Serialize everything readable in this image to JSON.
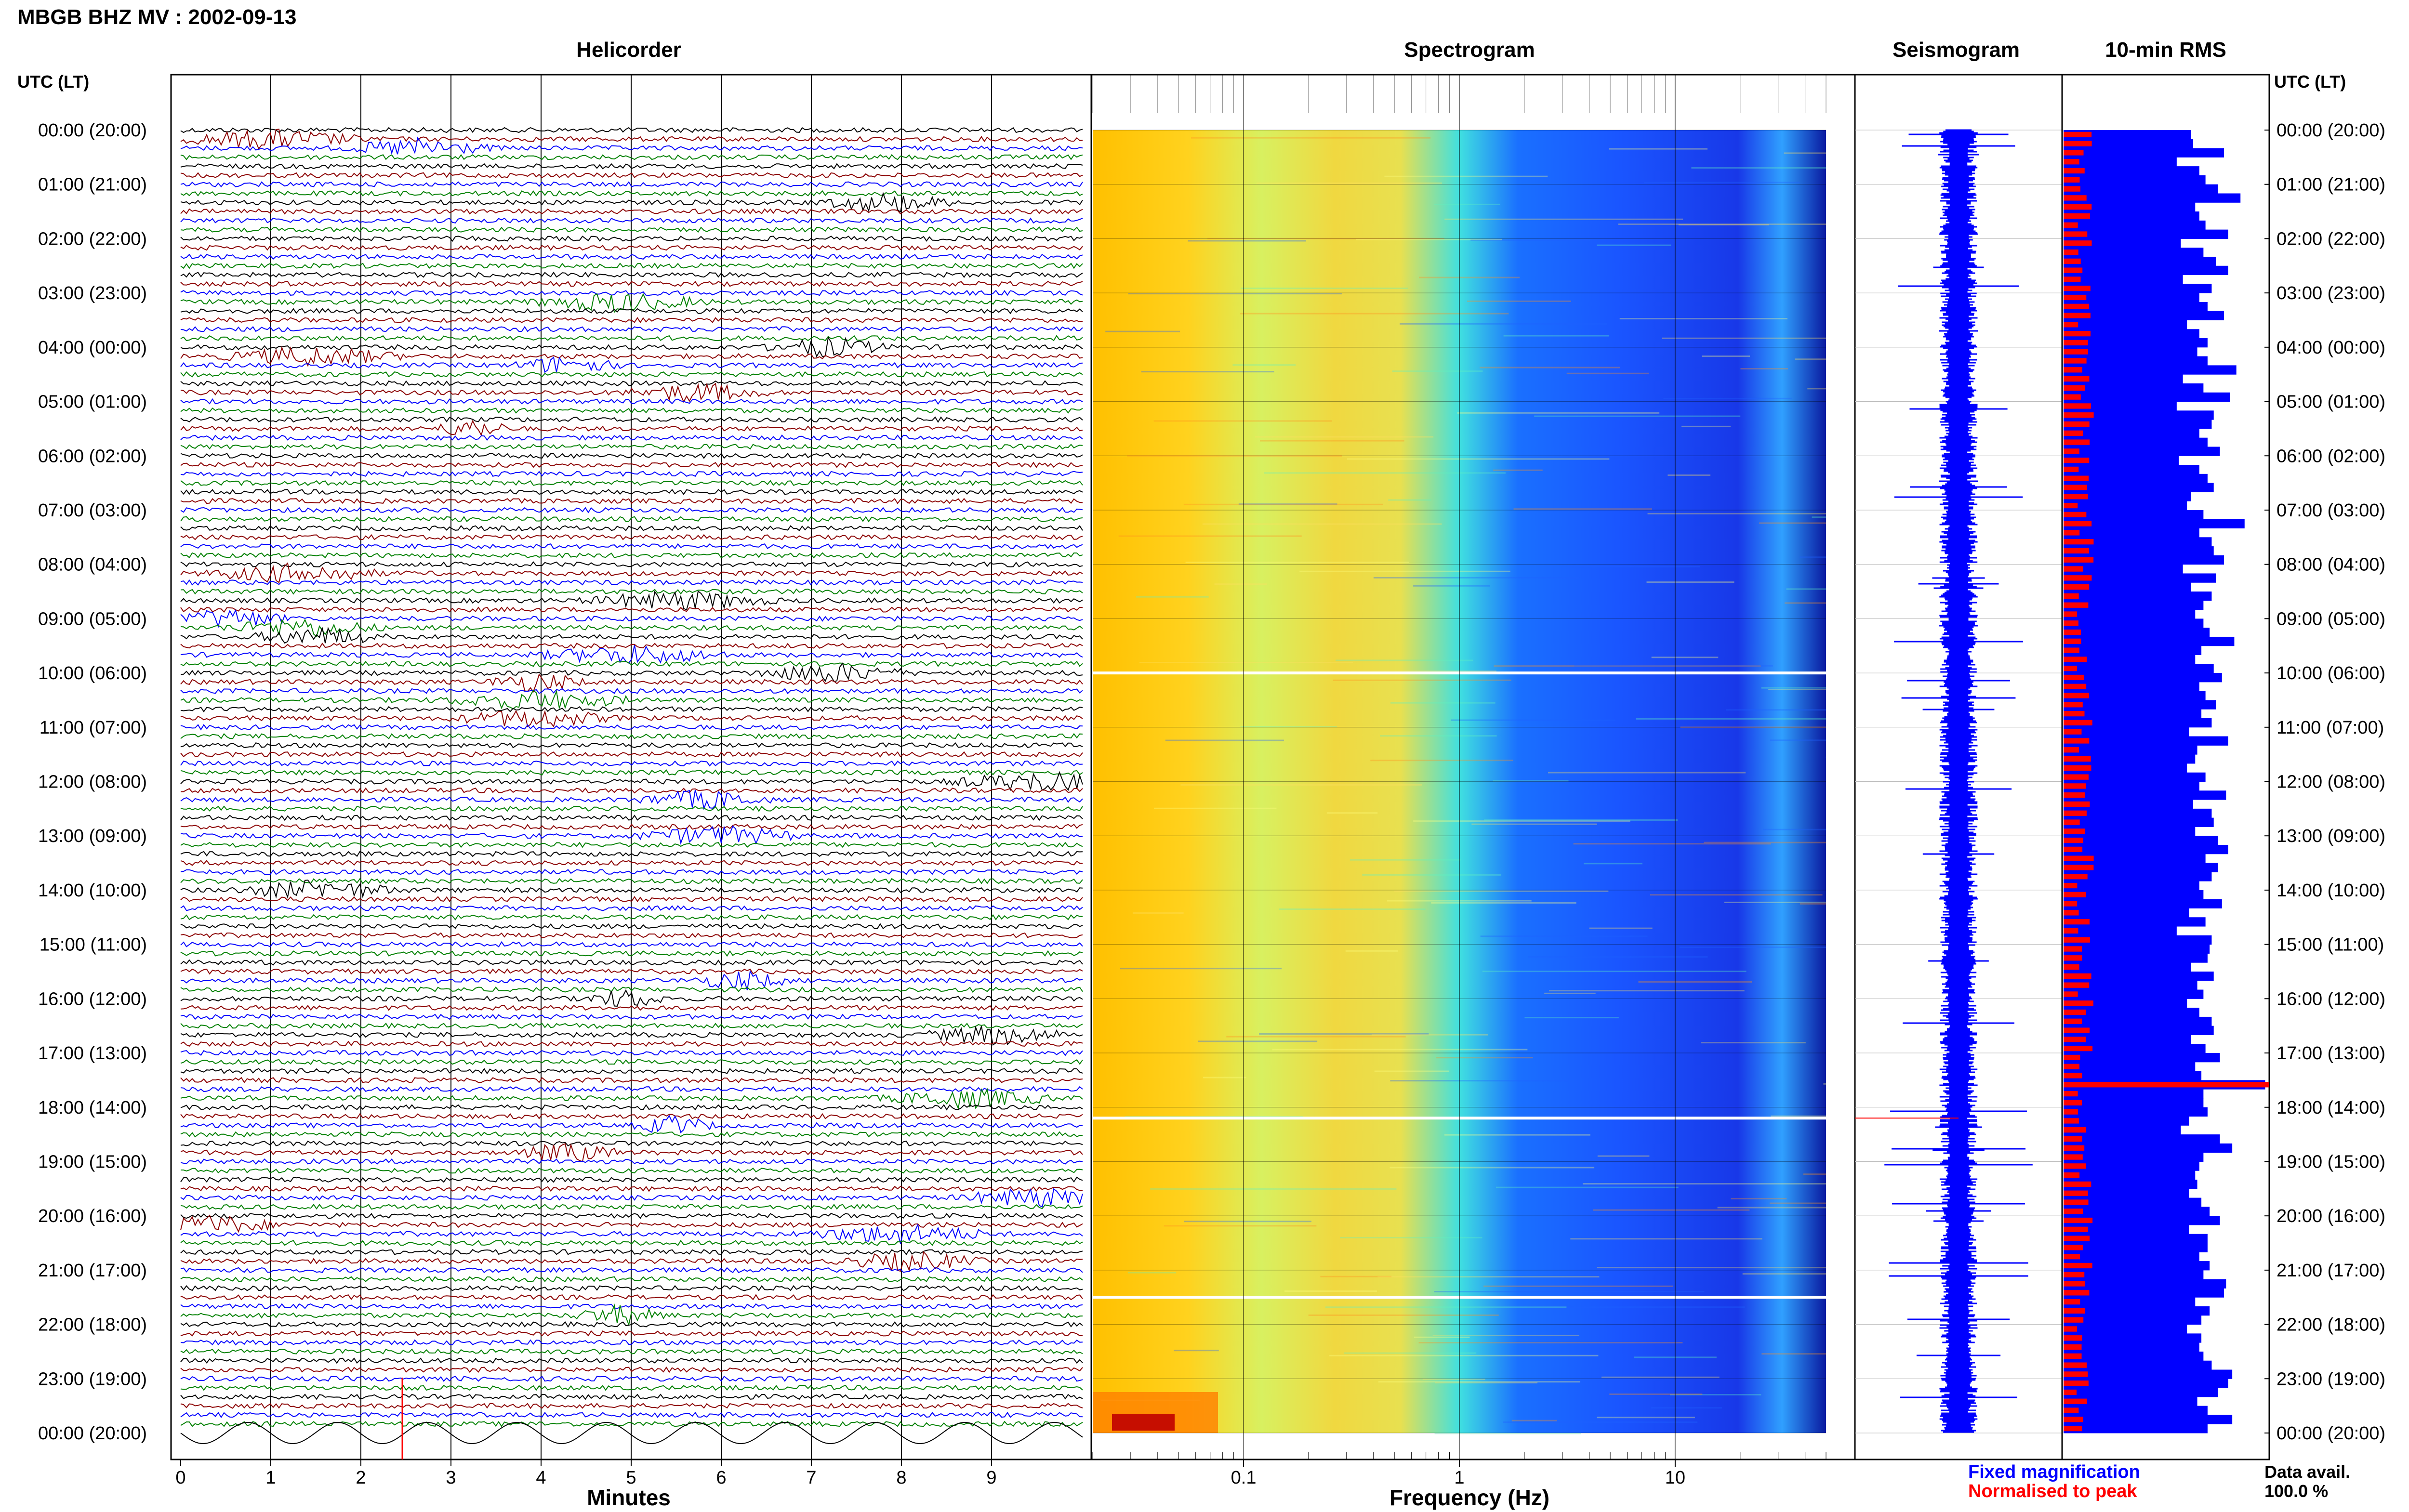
{
  "header": {
    "title": "MBGB BHZ MV : 2002-09-13"
  },
  "chart_data": {
    "type": "heatmap",
    "station_title": "MBGB BHZ MV : 2002-09-13",
    "panels": {
      "helicorder": "Helicorder",
      "spectrogram": "Spectrogram",
      "seismogram": "Seismogram",
      "rms": "10-min RMS"
    },
    "time_axis_label": "UTC (LT)",
    "hour_labels": [
      "00:00 (20:00)",
      "01:00 (21:00)",
      "02:00 (22:00)",
      "03:00 (23:00)",
      "04:00 (00:00)",
      "05:00 (01:00)",
      "06:00 (02:00)",
      "07:00 (03:00)",
      "08:00 (04:00)",
      "09:00 (05:00)",
      "10:00 (06:00)",
      "11:00 (07:00)",
      "12:00 (08:00)",
      "13:00 (09:00)",
      "14:00 (10:00)",
      "15:00 (11:00)",
      "16:00 (12:00)",
      "17:00 (13:00)",
      "18:00 (14:00)",
      "19:00 (15:00)",
      "20:00 (16:00)",
      "21:00 (17:00)",
      "22:00 (18:00)",
      "23:00 (19:00)",
      "00:00 (20:00)"
    ],
    "helicorder_axis": {
      "xlabel": "Minutes",
      "ticks": [
        "0",
        "1",
        "2",
        "3",
        "4",
        "5",
        "6",
        "7",
        "8",
        "9"
      ],
      "xlim": [
        0,
        10
      ],
      "trace_colors": [
        "#000000",
        "#8b0000",
        "#0000ff",
        "#008000"
      ]
    },
    "spectrogram_axis": {
      "xlabel": "Frequency (Hz)",
      "scale": "log",
      "ticks": [
        "0.1",
        "1",
        "10"
      ],
      "xlim": [
        0.02,
        50
      ]
    },
    "rms_legend": {
      "fixed": "Fixed magnification",
      "normalised": "Normalised to peak",
      "fixed_color": "#0000ff",
      "normalised_color": "#ff0000"
    },
    "data_availability": {
      "label": "Data avail.",
      "value": "100.0 %"
    },
    "rms_values": [
      0.62,
      0.63,
      0.78,
      0.55,
      0.66,
      0.69,
      0.75,
      0.86,
      0.64,
      0.66,
      0.69,
      0.8,
      0.57,
      0.68,
      0.74,
      0.8,
      0.58,
      0.72,
      0.66,
      0.7,
      0.78,
      0.6,
      0.66,
      0.7,
      0.65,
      0.7,
      0.84,
      0.58,
      0.68,
      0.81,
      0.55,
      0.73,
      0.72,
      0.66,
      0.7,
      0.76,
      0.56,
      0.66,
      0.7,
      0.73,
      0.62,
      0.6,
      0.68,
      0.88,
      0.66,
      0.72,
      0.73,
      0.78,
      0.58,
      0.74,
      0.62,
      0.72,
      0.68,
      0.64,
      0.68,
      0.71,
      0.83,
      0.67,
      0.64,
      0.73,
      0.77,
      0.66,
      0.69,
      0.74,
      0.67,
      0.72,
      0.61,
      0.8,
      0.65,
      0.64,
      0.6,
      0.69,
      0.66,
      0.79,
      0.63,
      0.72,
      0.73,
      0.64,
      0.75,
      0.8,
      0.69,
      0.75,
      0.72,
      0.66,
      0.68,
      0.77,
      0.61,
      0.69,
      0.55,
      0.72,
      0.71,
      0.7,
      0.62,
      0.73,
      0.65,
      0.68,
      0.6,
      0.66,
      0.72,
      0.73,
      0.62,
      0.69,
      0.76,
      0.64,
      0.67,
      0.98,
      0.68,
      0.68,
      0.7,
      0.61,
      0.57,
      0.76,
      0.82,
      0.68,
      0.66,
      0.64,
      0.65,
      0.61,
      0.67,
      0.71,
      0.76,
      0.61,
      0.7,
      0.7,
      0.66,
      0.71,
      0.68,
      0.79,
      0.78,
      0.64,
      0.71,
      0.67,
      0.6,
      0.67,
      0.66,
      0.68,
      0.72,
      0.82,
      0.8,
      0.75,
      0.65,
      0.7,
      0.82,
      0.7
    ],
    "rms_peak": 1.0
  }
}
